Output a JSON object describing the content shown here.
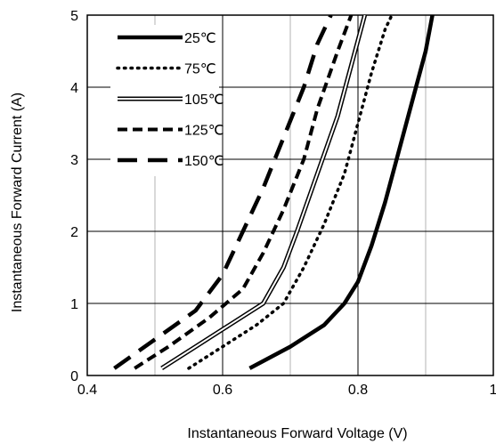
{
  "chart_data": {
    "type": "line",
    "xlabel": "Instantaneous Forward Voltage (V)",
    "ylabel": "Instantaneous Forward Current (A)",
    "xlim": [
      0.4,
      1.0
    ],
    "ylim": [
      0,
      5
    ],
    "x_ticks": [
      "0.4",
      "0.6",
      "0.8",
      "1"
    ],
    "y_ticks": [
      "0",
      "1",
      "2",
      "3",
      "4",
      "5"
    ],
    "grid": true,
    "legend_position": "top-left",
    "series": [
      {
        "name": "25℃",
        "style": "solid-thick",
        "points": [
          [
            0.64,
            0.1
          ],
          [
            0.7,
            0.4
          ],
          [
            0.75,
            0.7
          ],
          [
            0.78,
            1.0
          ],
          [
            0.8,
            1.3
          ],
          [
            0.82,
            1.8
          ],
          [
            0.84,
            2.4
          ],
          [
            0.86,
            3.1
          ],
          [
            0.88,
            3.8
          ],
          [
            0.9,
            4.5
          ],
          [
            0.91,
            5.0
          ]
        ]
      },
      {
        "name": "75℃",
        "style": "dotted",
        "points": [
          [
            0.55,
            0.1
          ],
          [
            0.6,
            0.4
          ],
          [
            0.65,
            0.7
          ],
          [
            0.69,
            1.0
          ],
          [
            0.72,
            1.5
          ],
          [
            0.75,
            2.1
          ],
          [
            0.78,
            2.8
          ],
          [
            0.8,
            3.5
          ],
          [
            0.82,
            4.2
          ],
          [
            0.84,
            4.8
          ],
          [
            0.85,
            5.0
          ]
        ]
      },
      {
        "name": "105℃",
        "style": "double",
        "points": [
          [
            0.51,
            0.1
          ],
          [
            0.56,
            0.4
          ],
          [
            0.61,
            0.7
          ],
          [
            0.66,
            1.0
          ],
          [
            0.69,
            1.5
          ],
          [
            0.71,
            2.0
          ],
          [
            0.74,
            2.8
          ],
          [
            0.77,
            3.6
          ],
          [
            0.79,
            4.3
          ],
          [
            0.81,
            5.0
          ]
        ]
      },
      {
        "name": "125℃",
        "style": "dashed",
        "points": [
          [
            0.47,
            0.1
          ],
          [
            0.52,
            0.4
          ],
          [
            0.58,
            0.8
          ],
          [
            0.63,
            1.2
          ],
          [
            0.66,
            1.7
          ],
          [
            0.69,
            2.3
          ],
          [
            0.72,
            3.0
          ],
          [
            0.74,
            3.7
          ],
          [
            0.77,
            4.5
          ],
          [
            0.79,
            5.0
          ]
        ]
      },
      {
        "name": "150℃",
        "style": "long-dashed",
        "points": [
          [
            0.44,
            0.1
          ],
          [
            0.5,
            0.5
          ],
          [
            0.56,
            0.9
          ],
          [
            0.6,
            1.4
          ],
          [
            0.63,
            2.0
          ],
          [
            0.66,
            2.6
          ],
          [
            0.69,
            3.3
          ],
          [
            0.72,
            4.0
          ],
          [
            0.74,
            4.6
          ],
          [
            0.76,
            5.0
          ]
        ]
      }
    ]
  }
}
